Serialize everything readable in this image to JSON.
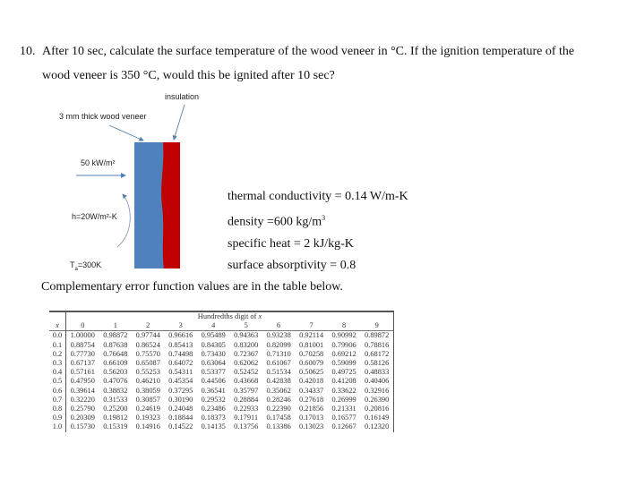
{
  "question": {
    "number": "10.",
    "line1": "After 10 sec, calculate the surface temperature of the wood veneer in °C. If the ignition temperature of the",
    "line2": "wood veneer is 350 °C, would this be ignited after 10 sec?"
  },
  "diagram": {
    "insulation_label": "insulation",
    "veneer_label": "3 mm thick wood veneer",
    "heat_flux_label": "50 kW/m²",
    "convection_label": "h=20W/m²-K",
    "ambient_label_prefix": "T",
    "ambient_label_sub": "a",
    "ambient_label_suffix": "=300K",
    "colors": {
      "wood": "#4f81bd",
      "insulation": "#c00000",
      "arrow": "#4f81bd"
    }
  },
  "properties": {
    "thermal_conductivity": "thermal conductivity = 0.14 W/m-K",
    "density_prefix": "density =600 kg/m",
    "density_sup": "3",
    "specific_heat": "specific heat = 2 kJ/kg-K",
    "absorptivity": "surface absorptivity = 0.8"
  },
  "caption": "Complementary error function values are in the table below.",
  "erfc_table": {
    "group_header": "Hundredths digit of ",
    "group_header_var": "x",
    "x_header": "x",
    "columns": [
      "0",
      "1",
      "2",
      "3",
      "4",
      "5",
      "6",
      "7",
      "8",
      "9"
    ],
    "rows": [
      {
        "x": "0.0",
        "v": [
          "1.00000",
          "0.98872",
          "0.97744",
          "0.96616",
          "0.95489",
          "0.94363",
          "0.93238",
          "0.92114",
          "0.90992",
          "0.89872"
        ]
      },
      {
        "x": "0.1",
        "v": [
          "0.88754",
          "0.87638",
          "0.86524",
          "0.85413",
          "0.84305",
          "0.83200",
          "0.82099",
          "0.81001",
          "0.79906",
          "0.78816"
        ]
      },
      {
        "x": "0.2",
        "v": [
          "0.77730",
          "0.76648",
          "0.75570",
          "0.74498",
          "0.73430",
          "0.72367",
          "0.71310",
          "0.70258",
          "0.69212",
          "0.68172"
        ]
      },
      {
        "x": "0.3",
        "v": [
          "0.67137",
          "0.66109",
          "0.65087",
          "0.64072",
          "0.63064",
          "0.62062",
          "0.61067",
          "0.60079",
          "0.59099",
          "0.58126"
        ]
      },
      {
        "x": "0.4",
        "v": [
          "0.57161",
          "0.56203",
          "0.55253",
          "0.54311",
          "0.53377",
          "0.52452",
          "0.51534",
          "0.50625",
          "0.49725",
          "0.48833"
        ]
      },
      {
        "x": "0.5",
        "v": [
          "0.47950",
          "0.47076",
          "0.46210",
          "0.45354",
          "0.44506",
          "0.43668",
          "0.42838",
          "0.42018",
          "0.41208",
          "0.40406"
        ]
      },
      {
        "x": "0.6",
        "v": [
          "0.39614",
          "0.38832",
          "0.38059",
          "0.37295",
          "0.36541",
          "0.35797",
          "0.35062",
          "0.34337",
          "0.33622",
          "0.32916"
        ]
      },
      {
        "x": "0.7",
        "v": [
          "0.32220",
          "0.31533",
          "0.30857",
          "0.30190",
          "0.29532",
          "0.28884",
          "0.28246",
          "0.27618",
          "0.26999",
          "0.26390"
        ]
      },
      {
        "x": "0.8",
        "v": [
          "0.25790",
          "0.25200",
          "0.24619",
          "0.24048",
          "0.23486",
          "0.22933",
          "0.22390",
          "0.21856",
          "0.21331",
          "0.20816"
        ]
      },
      {
        "x": "0.9",
        "v": [
          "0.20309",
          "0.19812",
          "0.19323",
          "0.18844",
          "0.18373",
          "0.17911",
          "0.17458",
          "0.17013",
          "0.16577",
          "0.16149"
        ]
      },
      {
        "x": "1.0",
        "v": [
          "0.15730",
          "0.15319",
          "0.14916",
          "0.14522",
          "0.14135",
          "0.13756",
          "0.13386",
          "0.13023",
          "0.12667",
          "0.12320"
        ]
      }
    ]
  }
}
